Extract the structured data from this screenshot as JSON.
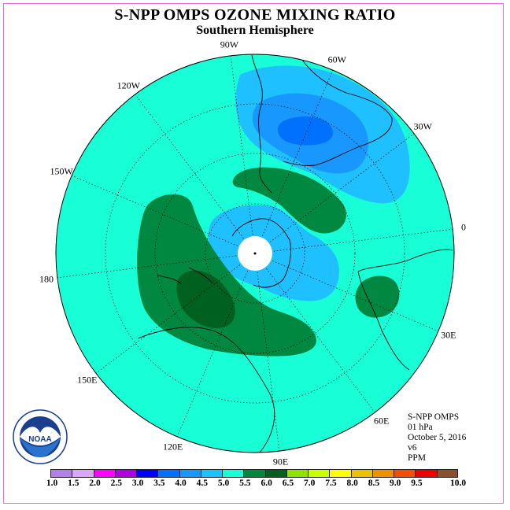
{
  "title": "S-NPP OMPS OZONE MIXING RATIO",
  "subtitle": "Southern Hemisphere",
  "longitude_labels": [
    "90W",
    "60W",
    "30W",
    "0",
    "30E",
    "60E",
    "90E",
    "120E",
    "150E",
    "180",
    "150W",
    "120W"
  ],
  "info": {
    "product": "S-NPP OMPS",
    "level": "01 hPa",
    "date": "October 5, 2016",
    "version": "v6",
    "units": "PPM"
  },
  "logo": {
    "text": "NOAA",
    "ring_text": "NATIONAL OCEANIC AND ATMOSPHERIC ADMINISTRATION · U.S. DEPARTMENT OF COMMERCE"
  },
  "colorbar": {
    "ticks": [
      "1.0",
      "1.5",
      "2.0",
      "2.5",
      "3.0",
      "3.5",
      "4.0",
      "4.5",
      "5.0",
      "5.5",
      "6.0",
      "6.5",
      "7.0",
      "7.5",
      "8.0",
      "8.5",
      "9.0",
      "9.5",
      "10.0"
    ],
    "colors": [
      "#b080f0",
      "#d8a8f8",
      "#ff00ff",
      "#b000e0",
      "#0000ff",
      "#0070ff",
      "#1898ff",
      "#1ec0ff",
      "#18ffd8",
      "#008840",
      "#006020",
      "#90e000",
      "#c8ff00",
      "#ffff00",
      "#f0c000",
      "#f09000",
      "#f05000",
      "#f00000",
      "#8b5030"
    ]
  },
  "colors": {
    "background": "#18ffd8",
    "low_light": "#1ec0ff",
    "low_mid": "#1898ff",
    "low_deep": "#0070ff",
    "high": "#008840",
    "high_deep": "#006020"
  }
}
